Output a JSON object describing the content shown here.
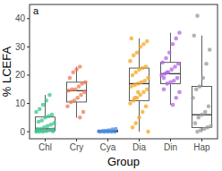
{
  "chart_data": {
    "type": "box",
    "panel_label": "a",
    "x_label": "Group",
    "y_label": "% LCEFA",
    "categories": [
      "Chl",
      "Cry",
      "Cya",
      "Dia",
      "Din",
      "Hap"
    ],
    "colors": [
      "#3dc48e",
      "#f07a5a",
      "#4a8fe0",
      "#f5a623",
      "#b266e8",
      "#9a9a9a"
    ],
    "boxes": [
      [
        0,
        0.3,
        1,
        5.2,
        13
      ],
      [
        5,
        10.5,
        14.5,
        17.5,
        23
      ],
      [
        0,
        0,
        0.1,
        0.5,
        1
      ],
      [
        0,
        11,
        17,
        22.5,
        33
      ],
      [
        9.5,
        17,
        20.5,
        24.5,
        35
      ],
      [
        0,
        1.5,
        6,
        16,
        34
      ]
    ],
    "points": [
      [
        0,
        0,
        0,
        0.2,
        0.5,
        0.8,
        1,
        1,
        1.5,
        2,
        2.5,
        3,
        3.5,
        4,
        5,
        5.5,
        6,
        7,
        8,
        9.5,
        11,
        13,
        0.1,
        0.3
      ],
      [
        5,
        7,
        9,
        10.5,
        11,
        12,
        13,
        14,
        14.5,
        15,
        15,
        16,
        17,
        17.5,
        19,
        21,
        22,
        23
      ],
      [
        0,
        0,
        0,
        0,
        0.1,
        0.2,
        0.3,
        0.5,
        0.8,
        1,
        0,
        0.2
      ],
      [
        0,
        1.5,
        3,
        5,
        7,
        9,
        10,
        11,
        12,
        13,
        14,
        15,
        16,
        16.5,
        17,
        17.5,
        18,
        19,
        20,
        21,
        22,
        22.5,
        23,
        25,
        27,
        28,
        30,
        31,
        32,
        33,
        12,
        14
      ],
      [
        9.5,
        12,
        14,
        15,
        17,
        17.5,
        18,
        19,
        20,
        20.5,
        21,
        22,
        23,
        24,
        24.5,
        26,
        28,
        31,
        33,
        35,
        19,
        21
      ],
      [
        0,
        0.5,
        1,
        1.5,
        2,
        3,
        5,
        6,
        7,
        9,
        12,
        15,
        16,
        19,
        24,
        29,
        34,
        41
      ]
    ],
    "ylim": [
      -2.5,
      45
    ],
    "yticks": [
      0,
      10,
      20,
      30,
      40
    ]
  }
}
